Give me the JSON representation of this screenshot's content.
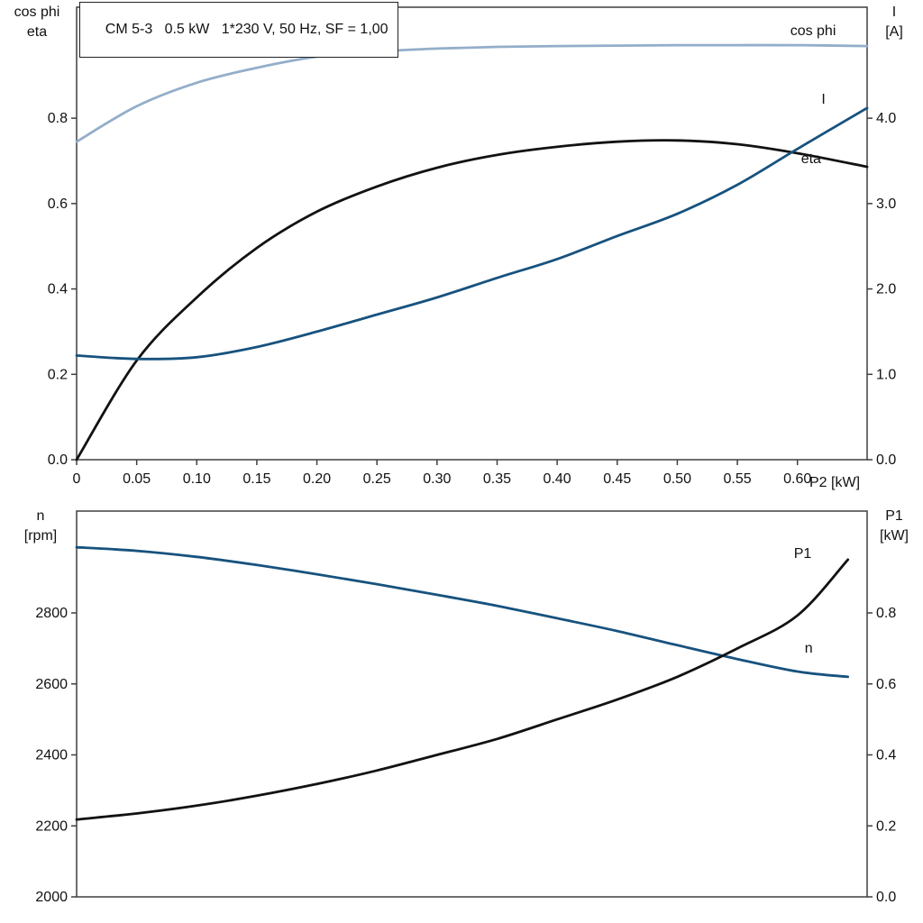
{
  "title": "CM 5-3   0.5 kW   1*230 V, 50 Hz, SF = 1,00",
  "colors": {
    "frame": "#3f3f3f",
    "black_curve": "#121212",
    "dark_blue": "#17527e",
    "light_blue": "#93aec9",
    "text": "#111111"
  },
  "chart_data": [
    {
      "type": "line",
      "name": "electrical-panel",
      "x": {
        "label": "P2 [kW]",
        "range": [
          0,
          0.658
        ],
        "ticks": [
          {
            "value": 0,
            "label": "0"
          },
          {
            "value": 0.05,
            "label": "0.05"
          },
          {
            "value": 0.1,
            "label": "0.10"
          },
          {
            "value": 0.15,
            "label": "0.15"
          },
          {
            "value": 0.2,
            "label": "0.20"
          },
          {
            "value": 0.25,
            "label": "0.25"
          },
          {
            "value": 0.3,
            "label": "0.30"
          },
          {
            "value": 0.35,
            "label": "0.35"
          },
          {
            "value": 0.4,
            "label": "0.40"
          },
          {
            "value": 0.45,
            "label": "0.45"
          },
          {
            "value": 0.5,
            "label": "0.50"
          },
          {
            "value": 0.55,
            "label": "0.55"
          },
          {
            "value": 0.6,
            "label": "0.60"
          }
        ]
      },
      "left_axis": {
        "title_line1": "cos phi",
        "title_line2": "eta",
        "range": [
          0,
          1.06
        ],
        "ticks": [
          {
            "value": 0.0,
            "label": "0.0"
          },
          {
            "value": 0.2,
            "label": "0.2"
          },
          {
            "value": 0.4,
            "label": "0.4"
          },
          {
            "value": 0.6,
            "label": "0.6"
          },
          {
            "value": 0.8,
            "label": "0.8"
          }
        ]
      },
      "right_axis": {
        "title_line1": "I",
        "title_line2": "[A]",
        "range": [
          0,
          5.3
        ],
        "ticks": [
          {
            "value": 0.0,
            "label": "0.0"
          },
          {
            "value": 1.0,
            "label": "1.0"
          },
          {
            "value": 2.0,
            "label": "2.0"
          },
          {
            "value": 3.0,
            "label": "3.0"
          },
          {
            "value": 4.0,
            "label": "4.0"
          }
        ]
      },
      "series": [
        {
          "name": "cos phi",
          "axis": "left",
          "color_key": "light_blue",
          "label": {
            "text": "cos phi",
            "x": 0.594,
            "v": 0.995
          },
          "x": [
            0,
            0.05,
            0.1,
            0.15,
            0.2,
            0.25,
            0.3,
            0.35,
            0.4,
            0.45,
            0.5,
            0.55,
            0.6,
            0.658
          ],
          "y": [
            0.745,
            0.828,
            0.883,
            0.918,
            0.944,
            0.956,
            0.963,
            0.967,
            0.969,
            0.97,
            0.971,
            0.971,
            0.971,
            0.969
          ]
        },
        {
          "name": "eta",
          "axis": "left",
          "color_key": "black_curve",
          "label": {
            "text": "eta",
            "x": 0.603,
            "v": 0.695
          },
          "x": [
            0,
            0.05,
            0.1,
            0.15,
            0.2,
            0.25,
            0.3,
            0.35,
            0.4,
            0.45,
            0.5,
            0.55,
            0.6,
            0.658
          ],
          "y": [
            0.0,
            0.232,
            0.38,
            0.496,
            0.581,
            0.64,
            0.684,
            0.714,
            0.733,
            0.745,
            0.748,
            0.739,
            0.718,
            0.686
          ]
        },
        {
          "name": "I",
          "axis": "right",
          "color_key": "dark_blue",
          "label": {
            "text": "I",
            "x": 0.62,
            "v": 4.17
          },
          "x": [
            0,
            0.05,
            0.1,
            0.15,
            0.2,
            0.25,
            0.3,
            0.35,
            0.4,
            0.45,
            0.5,
            0.55,
            0.6,
            0.658
          ],
          "y": [
            1.22,
            1.18,
            1.2,
            1.32,
            1.5,
            1.7,
            1.9,
            2.13,
            2.35,
            2.62,
            2.88,
            3.22,
            3.64,
            4.12
          ]
        }
      ]
    },
    {
      "type": "line",
      "name": "mechanical-panel",
      "x": {
        "label": "",
        "range": [
          0,
          0.658
        ],
        "ticks": []
      },
      "left_axis": {
        "title_line1": "n",
        "title_line2": "[rpm]",
        "range": [
          2000,
          3087
        ],
        "ticks": [
          {
            "value": 2000,
            "label": "2000"
          },
          {
            "value": 2200,
            "label": "2200"
          },
          {
            "value": 2400,
            "label": "2400"
          },
          {
            "value": 2600,
            "label": "2600"
          },
          {
            "value": 2800,
            "label": "2800"
          }
        ]
      },
      "right_axis": {
        "title_line1": "P1",
        "title_line2": "[kW]",
        "range": [
          0,
          1.087
        ],
        "ticks": [
          {
            "value": 0.0,
            "label": "0.0"
          },
          {
            "value": 0.2,
            "label": "0.2"
          },
          {
            "value": 0.4,
            "label": "0.4"
          },
          {
            "value": 0.6,
            "label": "0.6"
          },
          {
            "value": 0.8,
            "label": "0.8"
          }
        ]
      },
      "series": [
        {
          "name": "n",
          "axis": "left",
          "color_key": "dark_blue",
          "label": {
            "text": "n",
            "x": 0.606,
            "v": 2688
          },
          "x": [
            0,
            0.05,
            0.1,
            0.15,
            0.2,
            0.25,
            0.3,
            0.35,
            0.4,
            0.45,
            0.5,
            0.55,
            0.6,
            0.642
          ],
          "y": [
            2985,
            2975,
            2958,
            2935,
            2909,
            2881,
            2851,
            2820,
            2785,
            2749,
            2709,
            2670,
            2635,
            2620
          ]
        },
        {
          "name": "P1",
          "axis": "right",
          "color_key": "black_curve",
          "label": {
            "text": "P1",
            "x": 0.597,
            "v": 0.955
          },
          "x": [
            0,
            0.05,
            0.1,
            0.15,
            0.2,
            0.25,
            0.3,
            0.35,
            0.4,
            0.45,
            0.5,
            0.55,
            0.6,
            0.642
          ],
          "y": [
            0.218,
            0.235,
            0.257,
            0.285,
            0.318,
            0.356,
            0.4,
            0.445,
            0.5,
            0.556,
            0.62,
            0.7,
            0.793,
            0.95
          ]
        }
      ]
    }
  ]
}
